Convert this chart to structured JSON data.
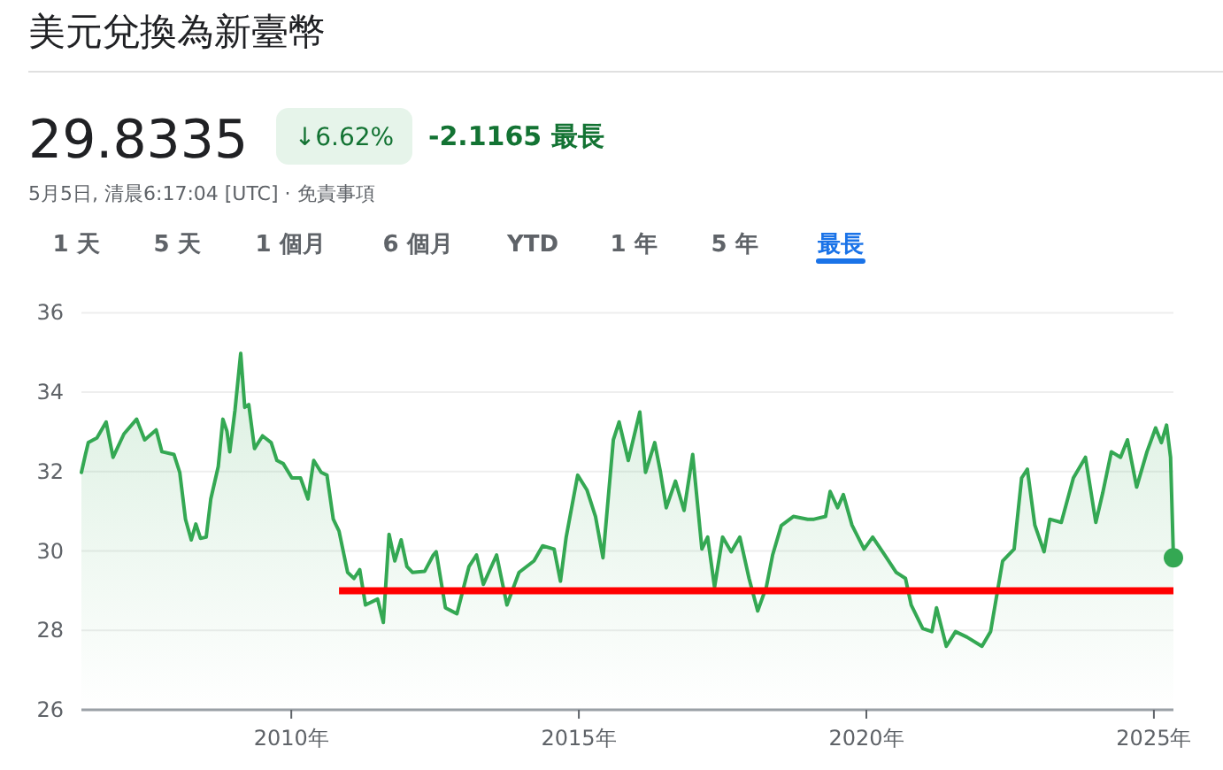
{
  "chart_data": {
    "type": "area",
    "title": "美元兌換為新臺幣",
    "annotations": [
      "29.8335",
      "↓6.62%",
      "-2.1165 最長",
      "5月5日, 清晨6:17:04 [UTC] · 免責事項",
      "1 天",
      "5 天",
      "1 個月",
      "6 個月",
      "YTD",
      "1 年",
      "5 年",
      "最長"
    ],
    "xlim": [
      2006.35,
      2025.34
    ],
    "xticks": [
      {
        "value": 2010,
        "label": "2010年"
      },
      {
        "value": 2015,
        "label": "2015年"
      },
      {
        "value": 2020,
        "label": "2020年"
      },
      {
        "value": 2025,
        "label": "2025年"
      }
    ],
    "ylim": [
      26,
      36
    ],
    "yticks": [
      26,
      28,
      30,
      32,
      34,
      36
    ],
    "grid": "y",
    "series": [
      {
        "color": "#34a853",
        "x": [
          2006.35,
          2006.42,
          2006.47,
          2006.62,
          2006.78,
          2006.9,
          2007.09,
          2007.31,
          2007.45,
          2007.65,
          2007.75,
          2007.96,
          2008.06,
          2008.16,
          2008.26,
          2008.34,
          2008.42,
          2008.52,
          2008.6,
          2008.73,
          2008.81,
          2008.88,
          2008.93,
          2009.02,
          2009.12,
          2009.19,
          2009.26,
          2009.36,
          2009.5,
          2009.65,
          2009.75,
          2009.86,
          2010.01,
          2010.16,
          2010.29,
          2010.39,
          2010.52,
          2010.62,
          2010.73,
          2010.83,
          2010.98,
          2011.09,
          2011.19,
          2011.29,
          2011.5,
          2011.6,
          2011.7,
          2011.8,
          2011.91,
          2012.01,
          2012.11,
          2012.32,
          2012.47,
          2012.52,
          2012.68,
          2012.88,
          2013.09,
          2013.22,
          2013.34,
          2013.57,
          2013.75,
          2013.96,
          2014.22,
          2014.37,
          2014.57,
          2014.68,
          2014.78,
          2014.98,
          2015.14,
          2015.29,
          2015.42,
          2015.6,
          2015.7,
          2015.86,
          2016.06,
          2016.16,
          2016.32,
          2016.42,
          2016.52,
          2016.68,
          2016.83,
          2016.98,
          2017.14,
          2017.24,
          2017.36,
          2017.5,
          2017.65,
          2017.8,
          2017.96,
          2018.11,
          2018.26,
          2018.37,
          2018.52,
          2018.73,
          2018.98,
          2019.09,
          2019.29,
          2019.37,
          2019.5,
          2019.6,
          2019.75,
          2019.96,
          2020.11,
          2020.32,
          2020.52,
          2020.68,
          2020.78,
          2020.98,
          2021.14,
          2021.22,
          2021.39,
          2021.55,
          2021.75,
          2022.01,
          2022.16,
          2022.37,
          2022.57,
          2022.7,
          2022.8,
          2022.93,
          2023.09,
          2023.19,
          2023.39,
          2023.6,
          2023.81,
          2023.99,
          2024.11,
          2024.26,
          2024.42,
          2024.54,
          2024.7,
          2024.88,
          2025.03,
          2025.13,
          2025.22,
          2025.29,
          2025.34
        ],
        "values": [
          31.98,
          32.43,
          32.73,
          32.85,
          33.25,
          32.36,
          32.95,
          33.32,
          32.8,
          33.05,
          32.5,
          32.43,
          31.98,
          30.8,
          30.28,
          30.68,
          30.32,
          30.35,
          31.31,
          32.13,
          33.32,
          33.02,
          32.5,
          33.54,
          34.98,
          33.62,
          33.69,
          32.58,
          32.9,
          32.73,
          32.28,
          32.2,
          31.84,
          31.84,
          31.31,
          32.28,
          31.98,
          31.91,
          30.8,
          30.5,
          29.46,
          29.31,
          29.53,
          28.64,
          28.79,
          28.2,
          30.42,
          29.75,
          30.28,
          29.61,
          29.46,
          29.49,
          29.9,
          29.98,
          28.57,
          28.42,
          29.61,
          29.9,
          29.16,
          29.9,
          28.64,
          29.46,
          29.75,
          30.13,
          30.05,
          29.24,
          30.35,
          31.91,
          31.54,
          30.87,
          29.83,
          32.8,
          33.25,
          32.28,
          33.5,
          31.98,
          32.73,
          31.98,
          31.09,
          31.76,
          31.02,
          32.43,
          30.05,
          30.35,
          29.09,
          30.35,
          29.98,
          30.35,
          29.31,
          28.49,
          29.09,
          29.9,
          30.64,
          30.87,
          30.8,
          30.8,
          30.87,
          31.5,
          31.09,
          31.42,
          30.65,
          30.05,
          30.35,
          29.9,
          29.46,
          29.31,
          28.64,
          28.05,
          27.97,
          28.57,
          27.6,
          27.97,
          27.83,
          27.6,
          27.97,
          29.75,
          30.05,
          31.84,
          32.06,
          30.65,
          29.98,
          30.8,
          30.72,
          31.84,
          32.36,
          30.72,
          31.46,
          32.5,
          32.36,
          32.8,
          31.61,
          32.5,
          33.1,
          32.73,
          33.17,
          32.36,
          29.83
        ]
      },
      {
        "type": "scatter",
        "color": "#34a853",
        "x": [
          2025.34
        ],
        "values": [
          29.83
        ]
      },
      {
        "type": "line",
        "color": "#ff0000",
        "x": [
          2010.83,
          2025.34
        ],
        "values": [
          29,
          29
        ]
      }
    ]
  }
}
